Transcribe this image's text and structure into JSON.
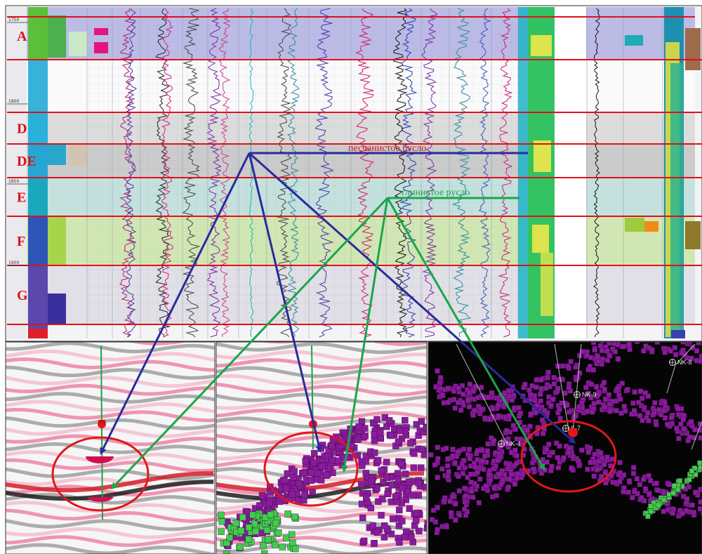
{
  "log_panel": {
    "depth_labels": [
      "1750",
      "1800",
      "1850",
      "1900"
    ],
    "zones": [
      {
        "label": "A",
        "fill": "#8c8cd8"
      },
      {
        "label": "",
        "fill": "#ffffff"
      },
      {
        "label": "D",
        "fill": "#c8c8c8"
      },
      {
        "label": "DE",
        "fill": "#a9aaaa"
      },
      {
        "label": "E",
        "fill": "#9fd2c8"
      },
      {
        "label": "F",
        "fill": "#b4dc7c"
      },
      {
        "label": "G",
        "fill": "#d0d0d8"
      }
    ],
    "annotations": {
      "sand_channel": "песчанистое русло",
      "clay_channel": "глинистое русло"
    }
  },
  "well_labels": [
    "NK-8",
    "NK-9",
    "K-7",
    "NK-4"
  ],
  "colors": {
    "zone_border": "#e0101a",
    "zone_label": "#e0101a",
    "sand_arrow": "#2a2a9c",
    "clay_arrow": "#1aa64a",
    "geobody": "#8a1b9c",
    "target_circle": "#e01818"
  }
}
